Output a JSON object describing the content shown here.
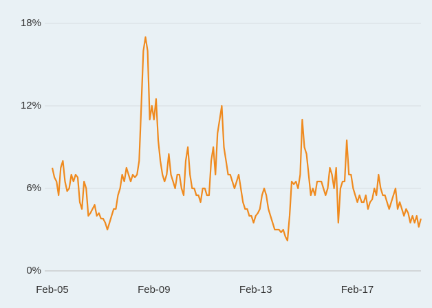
{
  "chart_data": {
    "type": "line",
    "x": [
      "Feb-05",
      "Mar-05",
      "Apr-05",
      "May-05",
      "Jun-05",
      "Jul-05",
      "Aug-05",
      "Sep-05",
      "Oct-05",
      "Nov-05",
      "Dec-05",
      "Jan-06",
      "Feb-06",
      "Mar-06",
      "Apr-06",
      "May-06",
      "Jun-06",
      "Jul-06",
      "Aug-06",
      "Sep-06",
      "Oct-06",
      "Nov-06",
      "Dec-06",
      "Jan-07",
      "Feb-07",
      "Mar-07",
      "Apr-07",
      "May-07",
      "Jun-07",
      "Jul-07",
      "Aug-07",
      "Sep-07",
      "Oct-07",
      "Nov-07",
      "Dec-07",
      "Jan-08",
      "Feb-08",
      "Mar-08",
      "Apr-08",
      "May-08",
      "Jun-08",
      "Jul-08",
      "Aug-08",
      "Sep-08",
      "Oct-08",
      "Nov-08",
      "Dec-08",
      "Jan-09",
      "Feb-09",
      "Mar-09",
      "Apr-09",
      "May-09",
      "Jun-09",
      "Jul-09",
      "Aug-09",
      "Sep-09",
      "Oct-09",
      "Nov-09",
      "Dec-09",
      "Jan-10",
      "Feb-10",
      "Mar-10",
      "Apr-10",
      "May-10",
      "Jun-10",
      "Jul-10",
      "Aug-10",
      "Sep-10",
      "Oct-10",
      "Nov-10",
      "Dec-10",
      "Jan-11",
      "Feb-11",
      "Mar-11",
      "Apr-11",
      "May-11",
      "Jun-11",
      "Jul-11",
      "Aug-11",
      "Sep-11",
      "Oct-11",
      "Nov-11",
      "Dec-11",
      "Jan-12",
      "Feb-12",
      "Mar-12",
      "Apr-12",
      "May-12",
      "Jun-12",
      "Jul-12",
      "Aug-12",
      "Sep-12",
      "Oct-12",
      "Nov-12",
      "Dec-12",
      "Jan-13",
      "Feb-13",
      "Mar-13",
      "Apr-13",
      "May-13",
      "Jun-13",
      "Jul-13",
      "Aug-13",
      "Sep-13",
      "Oct-13",
      "Nov-13",
      "Dec-13",
      "Jan-14",
      "Feb-14",
      "Mar-14",
      "Apr-14",
      "May-14",
      "Jun-14",
      "Jul-14",
      "Aug-14",
      "Sep-14",
      "Oct-14",
      "Nov-14",
      "Dec-14",
      "Jan-15",
      "Feb-15",
      "Mar-15",
      "Apr-15",
      "May-15",
      "Jun-15",
      "Jul-15",
      "Aug-15",
      "Sep-15",
      "Oct-15",
      "Nov-15",
      "Dec-15",
      "Jan-16",
      "Feb-16",
      "Mar-16",
      "Apr-16",
      "May-16",
      "Jun-16",
      "Jul-16",
      "Aug-16",
      "Sep-16",
      "Oct-16",
      "Nov-16",
      "Dec-16",
      "Jan-17",
      "Feb-17",
      "Mar-17",
      "Apr-17",
      "May-17",
      "Jun-17",
      "Jul-17",
      "Aug-17",
      "Sep-17",
      "Oct-17",
      "Nov-17",
      "Dec-17",
      "Jan-18",
      "Feb-18",
      "Mar-18",
      "Apr-18",
      "May-18",
      "Jun-18",
      "Jul-18",
      "Aug-18",
      "Sep-18",
      "Oct-18",
      "Nov-18",
      "Dec-18",
      "Jan-19",
      "Feb-19",
      "Mar-19",
      "Apr-19",
      "May-19",
      "Jun-19",
      "Jul-19",
      "Aug-19"
    ],
    "series": [
      {
        "color": "#ef8a1e",
        "values": [
          7.5,
          6.8,
          6.5,
          5.5,
          7.5,
          8,
          6.5,
          5.8,
          6,
          7,
          6.5,
          7,
          6.8,
          5,
          4.5,
          6.5,
          6,
          4,
          4.2,
          4.5,
          4.8,
          4,
          4.2,
          3.8,
          3.8,
          3.5,
          3,
          3.5,
          4,
          4.5,
          4.5,
          5.5,
          6,
          7,
          6.5,
          7.5,
          7,
          6.5,
          7,
          6.8,
          7,
          8,
          12,
          16,
          17,
          16,
          11,
          12,
          11,
          12.5,
          9.5,
          8,
          7,
          6.5,
          7,
          8.5,
          7,
          6.5,
          6,
          7,
          7,
          6,
          5.5,
          8,
          9,
          7,
          6,
          6,
          5.5,
          5.5,
          5,
          6,
          6,
          5.5,
          5.5,
          8,
          9,
          7,
          10,
          11,
          12,
          9,
          8,
          7,
          7,
          6.5,
          6,
          6.5,
          7,
          6,
          5,
          4.5,
          4.5,
          4,
          4,
          3.5,
          4,
          4.2,
          4.5,
          5.5,
          6,
          5.5,
          4.5,
          4,
          3.5,
          3,
          3,
          3,
          2.8,
          3,
          2.5,
          2.2,
          4,
          6.5,
          6.3,
          6.5,
          6,
          7,
          11,
          9,
          8.5,
          7,
          5.5,
          6,
          5.5,
          6.5,
          6.5,
          6.5,
          6,
          5.5,
          6,
          7.5,
          7,
          6,
          7.5,
          3.5,
          6,
          6.5,
          6.5,
          9.5,
          7,
          7,
          6,
          5.5,
          5,
          5.5,
          5,
          5,
          5.5,
          4.5,
          5,
          5.2,
          6,
          5.5,
          7,
          6,
          5.5,
          5.5,
          5,
          4.5,
          5,
          5.5,
          6,
          4.5,
          5,
          4.5,
          4,
          4.5,
          4.2,
          3.5,
          4,
          3.5,
          4,
          3.2,
          3.8
        ]
      }
    ],
    "xticks": [
      "Feb-05",
      "Feb-09",
      "Feb-13",
      "Feb-17"
    ],
    "ylim": [
      0,
      18
    ],
    "yticks": [
      {
        "value": 0,
        "label": "0%"
      },
      {
        "value": 6,
        "label": "6%"
      },
      {
        "value": 12,
        "label": "12%"
      },
      {
        "value": 18,
        "label": "18%"
      }
    ],
    "grid": true
  }
}
